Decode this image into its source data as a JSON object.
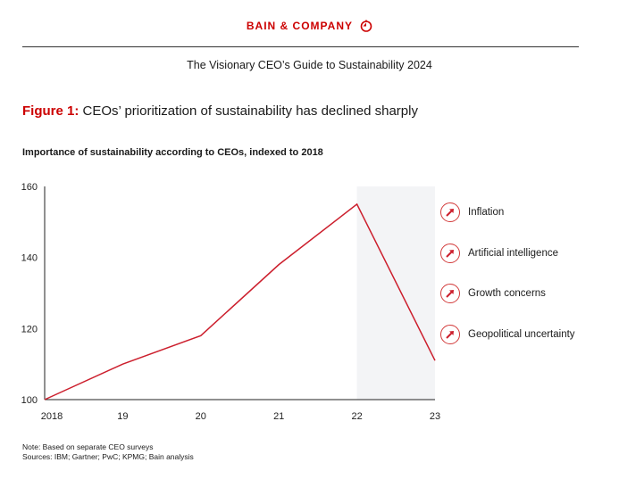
{
  "header": {
    "brand": "BAIN & COMPANY",
    "doc_title": "The Visionary CEO’s Guide to Sustainability 2024"
  },
  "figure": {
    "label": "Figure 1:",
    "title": "CEOs’ prioritization of sustainability has declined sharply"
  },
  "chart_data": {
    "type": "line",
    "title": "Importance of sustainability according to CEOs, indexed to 2018",
    "categories": [
      "2018",
      "19",
      "20",
      "21",
      "22",
      "23"
    ],
    "series": [
      {
        "name": "Importance of sustainability",
        "values": [
          100,
          110,
          118,
          138,
          155,
          111
        ],
        "color": "#cc1f2d"
      }
    ],
    "ylim": [
      100,
      160
    ],
    "yticks": [
      100,
      120,
      140,
      160
    ],
    "shaded_range": [
      "22",
      "23"
    ],
    "grid": false,
    "legend": {
      "placement": "right",
      "icon": "arrow-up-right-icon",
      "items": [
        "Inflation",
        "Artificial intelligence",
        "Growth concerns",
        "Geopolitical uncertainty"
      ]
    }
  },
  "notes": {
    "note": "Note: Based on separate CEO surveys",
    "sources": "Sources: IBM; Gartner; PwC; KPMG; Bain analysis"
  }
}
